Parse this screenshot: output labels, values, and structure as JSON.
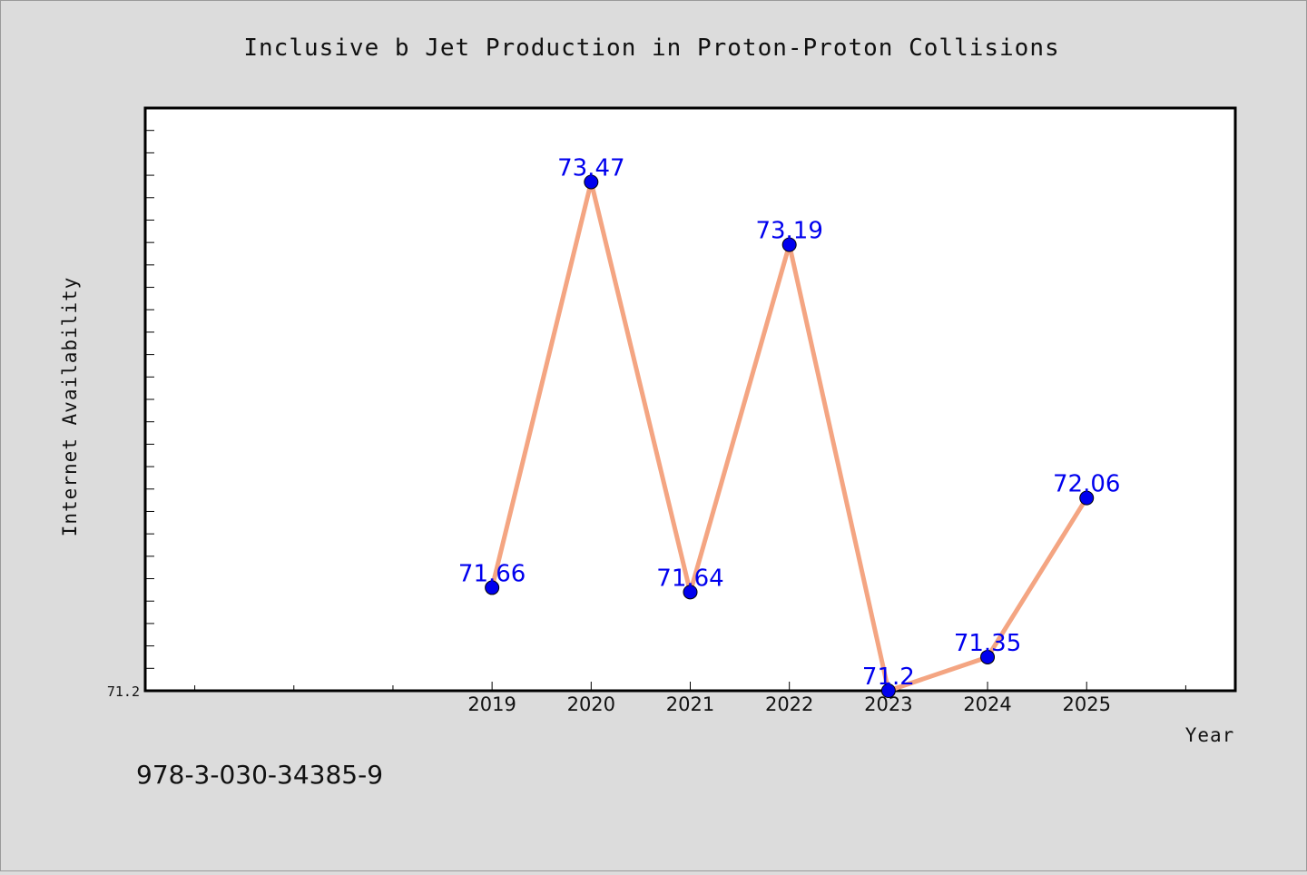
{
  "isbn": "978-3-030-34385-9",
  "colors": {
    "background": "#dcdcdc",
    "plot_background": "#ffffff",
    "line": "#f4a582",
    "marker": "#0000ee",
    "label": "#0000ee"
  },
  "chart_data": {
    "type": "line",
    "title": "Inclusive b Jet Production in Proton-Proton Collisions",
    "xlabel": "Year",
    "ylabel": "Internet Availability",
    "x": [
      2019,
      2020,
      2021,
      2022,
      2023,
      2024,
      2025
    ],
    "x_tick_labels": [
      "2019",
      "2020",
      "2021",
      "2022",
      "2023",
      "2024",
      "2025"
    ],
    "values": [
      71.66,
      73.47,
      71.64,
      73.19,
      71.2,
      71.35,
      72.06
    ],
    "data_labels": [
      "71.66",
      "73.47",
      "71.64",
      "73.19",
      "71.2",
      "71.35",
      "72.06"
    ],
    "xlim": [
      2015.5,
      2026.5
    ],
    "ylim": [
      71.2,
      73.8
    ],
    "y_tick_labels": [
      "71.2"
    ],
    "y_minor_step": 0.1,
    "x_minor_step": 1,
    "grid": false,
    "legend": "none"
  }
}
